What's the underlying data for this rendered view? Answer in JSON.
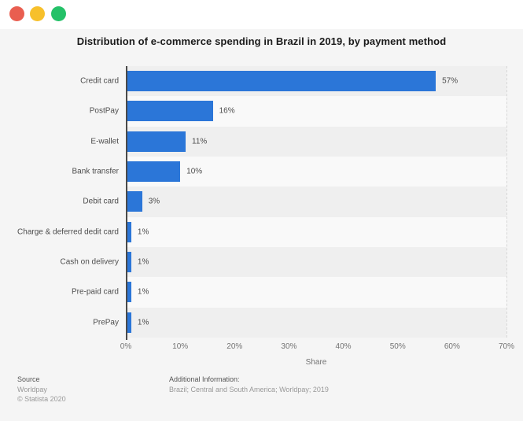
{
  "window": {
    "close_label": "close",
    "minimize_label": "minimize",
    "maximize_label": "maximize"
  },
  "chart_data": {
    "type": "bar",
    "orientation": "horizontal",
    "title": "Distribution of e-commerce spending in Brazil in 2019, by payment method",
    "categories": [
      "Credit card",
      "PostPay",
      "E-wallet",
      "Bank transfer",
      "Debit card",
      "Charge & deferred dedit card",
      "Cash on delivery",
      "Pre-paid card",
      "PrePay"
    ],
    "values": [
      57,
      16,
      11,
      10,
      3,
      1,
      1,
      1,
      1
    ],
    "value_labels": [
      "57%",
      "16%",
      "11%",
      "10%",
      "3%",
      "1%",
      "1%",
      "1%",
      "1%"
    ],
    "xlabel": "Share",
    "ylabel": "",
    "x_ticks": [
      0,
      10,
      20,
      30,
      40,
      50,
      60,
      70
    ],
    "x_tick_labels": [
      "0%",
      "10%",
      "20%",
      "30%",
      "40%",
      "50%",
      "60%",
      "70%"
    ],
    "xlim": [
      0,
      70
    ],
    "grid": "vertical-dashed",
    "legend": "none",
    "bar_color": "#2b76d8",
    "row_stripe_odd": "#efefef",
    "row_stripe_even": "#f9f9f9"
  },
  "footer": {
    "source_label": "Source",
    "source_value": "Worldpay",
    "copyright": "© Statista 2020",
    "additional_label": "Additional Information:",
    "additional_value": "Brazil; Central and South America; Worldpay; 2019"
  }
}
